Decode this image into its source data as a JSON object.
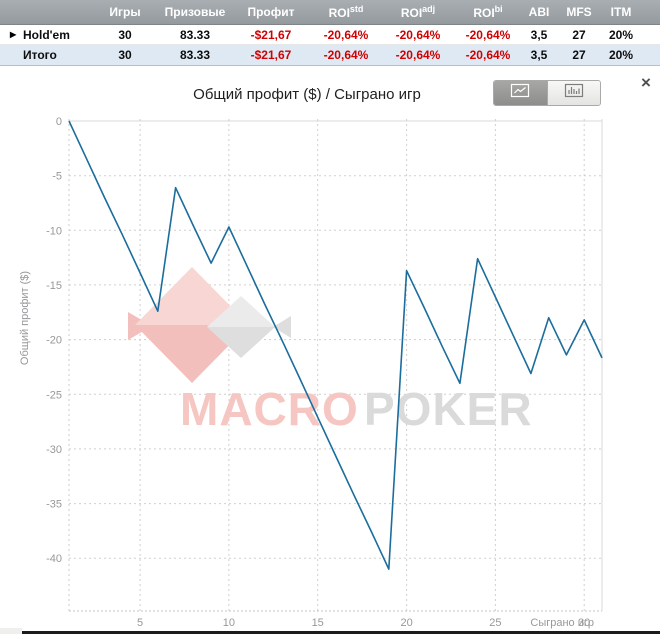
{
  "colors": {
    "negative": "#d10000",
    "header_gradient_top": "#a9aeb2",
    "header_gradient_bottom": "#959a9f",
    "total_row_bg": "#dfe9f3",
    "line": "#1b6d9d"
  },
  "table": {
    "headers": [
      {
        "text": ""
      },
      {
        "text": "Игры"
      },
      {
        "text": "Призовые"
      },
      {
        "text": "Профит"
      },
      {
        "text": "ROI",
        "sup": "std"
      },
      {
        "text": "ROI",
        "sup": "adj"
      },
      {
        "text": "ROI",
        "sup": "bi"
      },
      {
        "text": "ABI"
      },
      {
        "text": "MFS"
      },
      {
        "text": "ITM"
      }
    ],
    "rows": [
      {
        "expander": "▶",
        "label": "Hold'em",
        "cells": [
          "30",
          "83.33",
          "-$21,67",
          "-20,64%",
          "-20,64%",
          "-20,64%",
          "3,5",
          "27",
          "20%"
        ]
      },
      {
        "expander": "",
        "label": "Итого",
        "cells": [
          "30",
          "83.33",
          "-$21,67",
          "-20,64%",
          "-20,64%",
          "-20,64%",
          "3,5",
          "27",
          "20%"
        ]
      }
    ]
  },
  "chart": {
    "toolbar": {
      "line_view_icon": "line-chart-icon",
      "bar_view_icon": "bar-chart-icon",
      "close_label": "×"
    }
  },
  "watermark": {
    "brand_1": "MACRO",
    "brand_2": "POKER",
    "brand_color_1": "#f6c6c3",
    "brand_color_2": "#dadada",
    "fish_pink_light": "#f8d6d4",
    "fish_pink_dark": "#f3bfbc",
    "fish_gray_light": "#ebebeb",
    "fish_gray_dark": "#dedede"
  },
  "chart_data": {
    "type": "line",
    "title": "Общий профит ($) / Сыграно игр",
    "xlabel": "Сыграно игр",
    "ylabel": "Общий профит ($)",
    "x": [
      1,
      2,
      3,
      4,
      5,
      6,
      7,
      8,
      9,
      10,
      11,
      12,
      13,
      14,
      15,
      16,
      17,
      18,
      19,
      20,
      21,
      22,
      23,
      24,
      25,
      26,
      27,
      28,
      29,
      30,
      31
    ],
    "values": [
      0,
      -3.5,
      -7.0,
      -10.4,
      -13.9,
      -17.4,
      -6.1,
      -9.6,
      -13.0,
      -9.7,
      -13.2,
      -16.7,
      -20.1,
      -23.6,
      -27.1,
      -30.6,
      -34.1,
      -37.5,
      -41.0,
      -13.7,
      -17.1,
      -20.6,
      -24.0,
      -12.6,
      -16.1,
      -19.6,
      -23.1,
      -18.0,
      -21.4,
      -18.2,
      -21.67
    ],
    "xticks": [
      5,
      10,
      15,
      20,
      25,
      30
    ],
    "yticks": [
      0,
      -5,
      -10,
      -15,
      -20,
      -25,
      -30,
      -35,
      -40
    ],
    "xlim": [
      1,
      31
    ],
    "ylim": [
      -45,
      0
    ],
    "grid": true,
    "legend": "none",
    "line_color": "#1b6d9d"
  }
}
